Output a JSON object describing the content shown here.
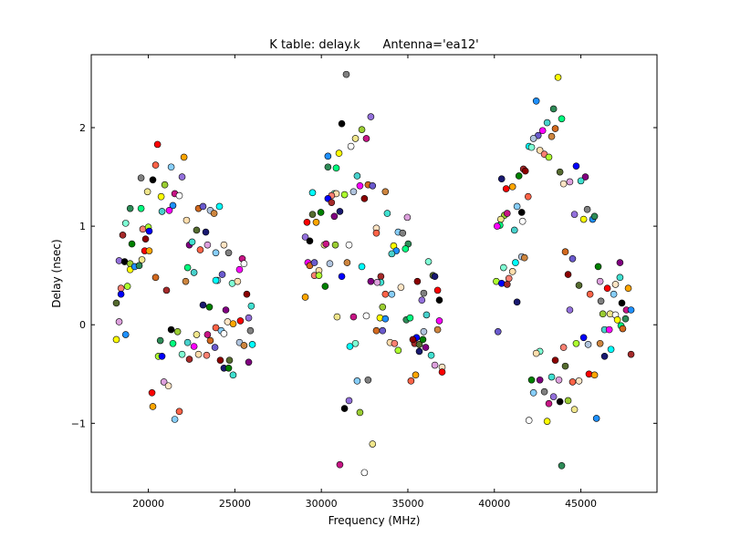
{
  "chart_data": {
    "type": "scatter",
    "title": "K table: delay.k      Antenna='ea12'",
    "xlabel": "Frequency (MHz)",
    "ylabel": "Delay (nsec)",
    "xlim": [
      16700,
      49400
    ],
    "ylim": [
      -1.7,
      2.74
    ],
    "xticks": [
      20000,
      25000,
      30000,
      35000,
      40000,
      45000
    ],
    "xtick_labels": [
      "20000",
      "25000",
      "30000",
      "35000",
      "40000",
      "45000"
    ],
    "yticks": [
      -1,
      0,
      1,
      2
    ],
    "ytick_labels": [
      "−1",
      "0",
      "1",
      "2"
    ],
    "grid": false,
    "legend": "none",
    "marker_edge_color": "#000000",
    "palette": [
      "#ff0000",
      "#008000",
      "#0000ff",
      "#00ffff",
      "#ff00ff",
      "#ffff00",
      "#000000",
      "#ffa500",
      "#800080",
      "#a52a2a",
      "#7fffd4",
      "#d2691e",
      "#1e90ff",
      "#9acd32",
      "#ff6347",
      "#40e0d0",
      "#8b0000",
      "#ffdead",
      "#6a5acd",
      "#2e8b57",
      "#f0e68c",
      "#87cefa",
      "#dda0dd",
      "#556b2f",
      "#fa8072",
      "#b0c4de",
      "#00ff7f",
      "#c71585",
      "#808080",
      "#ffe4c4",
      "#191970",
      "#adff2f",
      "#cd853f",
      "#48d1cc",
      "#ffffff",
      "#9370db"
    ],
    "points": [
      [
        20530,
        1.83
      ],
      [
        22060,
        1.7
      ],
      [
        20420,
        1.62
      ],
      [
        21320,
        1.6
      ],
      [
        19580,
        1.49
      ],
      [
        21950,
        1.5
      ],
      [
        20260,
        1.47
      ],
      [
        20950,
        1.42
      ],
      [
        19950,
        1.35
      ],
      [
        21530,
        1.33
      ],
      [
        21790,
        1.31
      ],
      [
        20740,
        1.3
      ],
      [
        21420,
        1.21
      ],
      [
        18950,
        1.18
      ],
      [
        19580,
        1.18
      ],
      [
        20790,
        1.15
      ],
      [
        21210,
        1.16
      ],
      [
        22900,
        1.18
      ],
      [
        23160,
        1.2
      ],
      [
        23580,
        1.16
      ],
      [
        23800,
        1.13
      ],
      [
        24110,
        1.2
      ],
      [
        18690,
        1.03
      ],
      [
        22210,
        1.06
      ],
      [
        19680,
        0.97
      ],
      [
        20000,
        0.99
      ],
      [
        20050,
        0.95
      ],
      [
        18520,
        0.91
      ],
      [
        19840,
        0.87
      ],
      [
        22790,
        0.96
      ],
      [
        23320,
        0.94
      ],
      [
        19050,
        0.82
      ],
      [
        22370,
        0.81
      ],
      [
        22530,
        0.84
      ],
      [
        23420,
        0.81
      ],
      [
        24370,
        0.81
      ],
      [
        19790,
        0.75
      ],
      [
        20050,
        0.75
      ],
      [
        23000,
        0.76
      ],
      [
        23900,
        0.73
      ],
      [
        24640,
        0.73
      ],
      [
        18310,
        0.65
      ],
      [
        18630,
        0.64
      ],
      [
        18950,
        0.62
      ],
      [
        19630,
        0.66
      ],
      [
        25430,
        0.67
      ],
      [
        25530,
        0.62
      ],
      [
        18950,
        0.56
      ],
      [
        19210,
        0.59
      ],
      [
        19470,
        0.6
      ],
      [
        22270,
        0.58
      ],
      [
        22640,
        0.53
      ],
      [
        25270,
        0.56
      ],
      [
        20420,
        0.48
      ],
      [
        24270,
        0.51
      ],
      [
        24000,
        0.45
      ],
      [
        22160,
        0.44
      ],
      [
        23900,
        0.45
      ],
      [
        24850,
        0.42
      ],
      [
        25160,
        0.44
      ],
      [
        18420,
        0.37
      ],
      [
        18790,
        0.39
      ],
      [
        18420,
        0.31
      ],
      [
        21050,
        0.35
      ],
      [
        25690,
        0.31
      ],
      [
        18150,
        0.22
      ],
      [
        23160,
        0.2
      ],
      [
        23530,
        0.18
      ],
      [
        24480,
        0.15
      ],
      [
        25950,
        0.19
      ],
      [
        18310,
        0.03
      ],
      [
        24580,
        0.03
      ],
      [
        25320,
        0.04
      ],
      [
        24900,
        0.01
      ],
      [
        23900,
        -0.03
      ],
      [
        24210,
        -0.06
      ],
      [
        25900,
        -0.06
      ],
      [
        25800,
        0.07
      ],
      [
        21320,
        -0.05
      ],
      [
        21690,
        -0.07
      ],
      [
        22790,
        -0.1
      ],
      [
        23420,
        -0.1
      ],
      [
        24370,
        -0.09
      ],
      [
        18150,
        -0.15
      ],
      [
        18690,
        -0.1
      ],
      [
        20690,
        -0.16
      ],
      [
        21420,
        -0.19
      ],
      [
        22270,
        -0.18
      ],
      [
        22640,
        -0.22
      ],
      [
        23580,
        -0.16
      ],
      [
        23850,
        -0.23
      ],
      [
        25270,
        -0.18
      ],
      [
        25530,
        -0.21
      ],
      [
        26010,
        -0.2
      ],
      [
        21950,
        -0.3
      ],
      [
        22900,
        -0.3
      ],
      [
        23370,
        -0.31
      ],
      [
        20580,
        -0.32
      ],
      [
        20790,
        -0.32
      ],
      [
        22370,
        -0.35
      ],
      [
        24160,
        -0.36
      ],
      [
        24690,
        -0.36
      ],
      [
        24370,
        -0.44
      ],
      [
        24640,
        -0.44
      ],
      [
        25800,
        -0.38
      ],
      [
        24900,
        -0.51
      ],
      [
        20900,
        -0.58
      ],
      [
        21160,
        -0.62
      ],
      [
        20210,
        -0.69
      ],
      [
        20260,
        -0.83
      ],
      [
        21790,
        -0.88
      ],
      [
        21530,
        -0.96
      ],
      [
        31440,
        2.54
      ],
      [
        32860,
        2.11
      ],
      [
        31180,
        2.04
      ],
      [
        32340,
        1.98
      ],
      [
        31970,
        1.89
      ],
      [
        32600,
        1.89
      ],
      [
        31710,
        1.81
      ],
      [
        31020,
        1.74
      ],
      [
        30380,
        1.71
      ],
      [
        30380,
        1.6
      ],
      [
        30860,
        1.59
      ],
      [
        32070,
        1.51
      ],
      [
        32230,
        1.41
      ],
      [
        32700,
        1.42
      ],
      [
        32960,
        1.41
      ],
      [
        31860,
        1.35
      ],
      [
        33700,
        1.35
      ],
      [
        29490,
        1.34
      ],
      [
        30750,
        1.33
      ],
      [
        30860,
        1.33
      ],
      [
        30590,
        1.31
      ],
      [
        31340,
        1.32
      ],
      [
        30380,
        1.28
      ],
      [
        30590,
        1.24
      ],
      [
        32490,
        1.28
      ],
      [
        29490,
        1.12
      ],
      [
        31070,
        1.15
      ],
      [
        29970,
        1.14
      ],
      [
        30750,
        1.1
      ],
      [
        33810,
        1.13
      ],
      [
        34970,
        1.09
      ],
      [
        33180,
        0.98
      ],
      [
        29170,
        1.04
      ],
      [
        29700,
        1.04
      ],
      [
        33180,
        0.93
      ],
      [
        34440,
        0.94
      ],
      [
        34700,
        0.93
      ],
      [
        29070,
        0.89
      ],
      [
        29330,
        0.85
      ],
      [
        30810,
        0.81
      ],
      [
        30170,
        0.81
      ],
      [
        30270,
        0.82
      ],
      [
        31600,
        0.81
      ],
      [
        34180,
        0.8
      ],
      [
        34330,
        0.75
      ],
      [
        35020,
        0.82
      ],
      [
        34860,
        0.77
      ],
      [
        34070,
        0.72
      ],
      [
        29220,
        0.63
      ],
      [
        29330,
        0.6
      ],
      [
        29600,
        0.63
      ],
      [
        30490,
        0.62
      ],
      [
        31490,
        0.63
      ],
      [
        32340,
        0.59
      ],
      [
        36190,
        0.64
      ],
      [
        29860,
        0.55
      ],
      [
        29600,
        0.5
      ],
      [
        29860,
        0.5
      ],
      [
        31180,
        0.49
      ],
      [
        33440,
        0.49
      ],
      [
        35550,
        0.44
      ],
      [
        36450,
        0.5
      ],
      [
        36560,
        0.49
      ],
      [
        30220,
        0.39
      ],
      [
        32860,
        0.44
      ],
      [
        33440,
        0.43
      ],
      [
        33230,
        0.43
      ],
      [
        34600,
        0.38
      ],
      [
        36720,
        0.35
      ],
      [
        29070,
        0.28
      ],
      [
        33700,
        0.31
      ],
      [
        34070,
        0.31
      ],
      [
        35920,
        0.32
      ],
      [
        35810,
        0.25
      ],
      [
        36820,
        0.25
      ],
      [
        33540,
        0.18
      ],
      [
        30910,
        0.08
      ],
      [
        31860,
        0.08
      ],
      [
        32600,
        0.09
      ],
      [
        33390,
        0.07
      ],
      [
        33700,
        0.06
      ],
      [
        34910,
        0.05
      ],
      [
        35130,
        0.07
      ],
      [
        36080,
        0.1
      ],
      [
        36820,
        0.04
      ],
      [
        33180,
        -0.06
      ],
      [
        33540,
        -0.06
      ],
      [
        35920,
        -0.07
      ],
      [
        36720,
        -0.05
      ],
      [
        31650,
        -0.22
      ],
      [
        31970,
        -0.19
      ],
      [
        33970,
        -0.18
      ],
      [
        34230,
        -0.19
      ],
      [
        34440,
        -0.26
      ],
      [
        35500,
        -0.13
      ],
      [
        35390,
        -0.19
      ],
      [
        35290,
        -0.15
      ],
      [
        35660,
        -0.2
      ],
      [
        35660,
        -0.27
      ],
      [
        35870,
        -0.15
      ],
      [
        36030,
        -0.23
      ],
      [
        36350,
        -0.31
      ],
      [
        36560,
        -0.41
      ],
      [
        36980,
        -0.43
      ],
      [
        36980,
        -0.48
      ],
      [
        35450,
        -0.51
      ],
      [
        35180,
        -0.57
      ],
      [
        32070,
        -0.57
      ],
      [
        32700,
        -0.56
      ],
      [
        31600,
        -0.77
      ],
      [
        31340,
        -0.85
      ],
      [
        32230,
        -0.89
      ],
      [
        32960,
        -1.21
      ],
      [
        31070,
        -1.42
      ],
      [
        32490,
        -1.5
      ],
      [
        43680,
        2.51
      ],
      [
        42420,
        2.27
      ],
      [
        43420,
        2.19
      ],
      [
        43890,
        2.09
      ],
      [
        43050,
        2.05
      ],
      [
        42790,
        1.97
      ],
      [
        43520,
        1.99
      ],
      [
        42530,
        1.92
      ],
      [
        42260,
        1.89
      ],
      [
        43310,
        1.91
      ],
      [
        42000,
        1.81
      ],
      [
        42150,
        1.8
      ],
      [
        42630,
        1.77
      ],
      [
        42890,
        1.73
      ],
      [
        43150,
        1.7
      ],
      [
        44730,
        1.61
      ],
      [
        41680,
        1.58
      ],
      [
        41790,
        1.56
      ],
      [
        43790,
        1.55
      ],
      [
        40420,
        1.48
      ],
      [
        41420,
        1.51
      ],
      [
        45260,
        1.5
      ],
      [
        45000,
        1.46
      ],
      [
        44360,
        1.45
      ],
      [
        44000,
        1.43
      ],
      [
        40680,
        1.38
      ],
      [
        41050,
        1.4
      ],
      [
        41950,
        1.3
      ],
      [
        41310,
        1.2
      ],
      [
        45370,
        1.17
      ],
      [
        44630,
        1.12
      ],
      [
        41580,
        1.14
      ],
      [
        40580,
        1.11
      ],
      [
        40370,
        1.07
      ],
      [
        40740,
        1.13
      ],
      [
        41630,
        1.05
      ],
      [
        45160,
        1.07
      ],
      [
        45680,
        1.07
      ],
      [
        45790,
        1.1
      ],
      [
        40320,
        1.01
      ],
      [
        41160,
        0.96
      ],
      [
        40160,
        1.0
      ],
      [
        44100,
        0.74
      ],
      [
        44520,
        0.67
      ],
      [
        41580,
        0.69
      ],
      [
        41740,
        0.68
      ],
      [
        41220,
        0.63
      ],
      [
        40530,
        0.58
      ],
      [
        41050,
        0.54
      ],
      [
        40840,
        0.47
      ],
      [
        40110,
        0.44
      ],
      [
        40420,
        0.42
      ],
      [
        40740,
        0.41
      ],
      [
        44260,
        0.51
      ],
      [
        44890,
        0.4
      ],
      [
        41310,
        0.23
      ],
      [
        46000,
        0.59
      ],
      [
        47260,
        0.63
      ],
      [
        47260,
        0.48
      ],
      [
        46110,
        0.44
      ],
      [
        47000,
        0.41
      ],
      [
        46530,
        0.37
      ],
      [
        47740,
        0.37
      ],
      [
        45530,
        0.31
      ],
      [
        46900,
        0.31
      ],
      [
        46160,
        0.24
      ],
      [
        44360,
        0.15
      ],
      [
        47370,
        0.22
      ],
      [
        46270,
        0.11
      ],
      [
        46690,
        0.11
      ],
      [
        47630,
        0.15
      ],
      [
        47000,
        0.1
      ],
      [
        47110,
        0.05
      ],
      [
        47900,
        0.15
      ],
      [
        47580,
        0.06
      ],
      [
        47320,
        -0.01
      ],
      [
        46370,
        -0.05
      ],
      [
        46640,
        -0.05
      ],
      [
        47420,
        -0.04
      ],
      [
        40210,
        -0.07
      ],
      [
        45420,
        -0.2
      ],
      [
        46110,
        -0.19
      ],
      [
        46740,
        -0.25
      ],
      [
        42630,
        -0.27
      ],
      [
        42420,
        -0.29
      ],
      [
        44000,
        -0.23
      ],
      [
        44730,
        -0.19
      ],
      [
        45160,
        -0.13
      ],
      [
        47900,
        -0.3
      ],
      [
        43520,
        -0.36
      ],
      [
        44100,
        -0.42
      ],
      [
        46370,
        -0.32
      ],
      [
        42150,
        -0.56
      ],
      [
        42630,
        -0.56
      ],
      [
        43310,
        -0.53
      ],
      [
        43730,
        -0.56
      ],
      [
        44890,
        -0.57
      ],
      [
        45470,
        -0.5
      ],
      [
        45790,
        -0.51
      ],
      [
        44520,
        -0.58
      ],
      [
        42260,
        -0.69
      ],
      [
        42890,
        -0.68
      ],
      [
        43420,
        -0.73
      ],
      [
        43790,
        -0.78
      ],
      [
        44260,
        -0.77
      ],
      [
        44630,
        -0.86
      ],
      [
        43150,
        -0.8
      ],
      [
        42000,
        -0.97
      ],
      [
        43050,
        -0.98
      ],
      [
        45900,
        -0.95
      ],
      [
        43890,
        -1.43
      ]
    ]
  }
}
